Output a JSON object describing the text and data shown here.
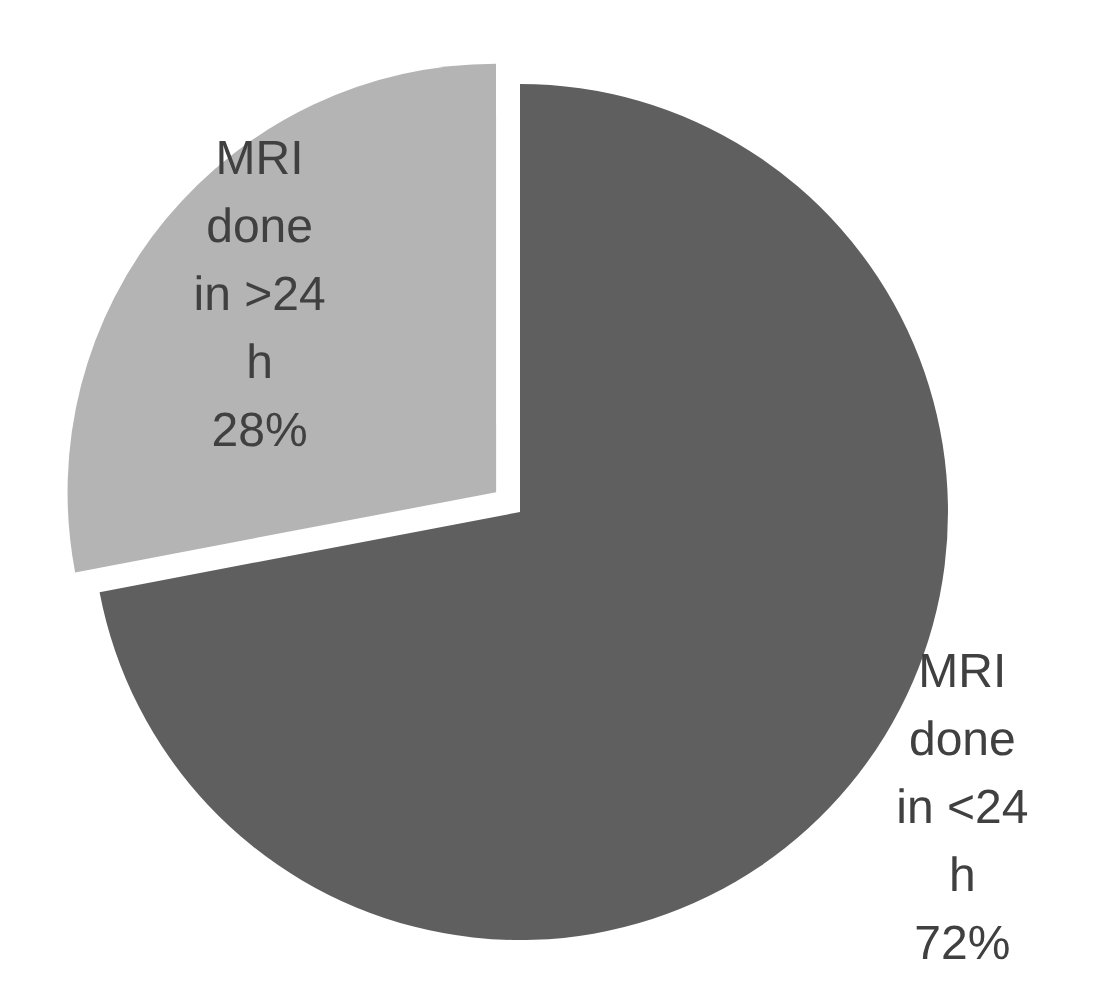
{
  "chart_data": {
    "type": "pie",
    "categories": [
      "MRI done in <24 h",
      "MRI done in >24 h"
    ],
    "values": [
      72,
      28
    ],
    "colors": [
      "#5f5f5f",
      "#b4b4b4"
    ],
    "value_labels": [
      "72%",
      "28%"
    ],
    "legend": false
  }
}
